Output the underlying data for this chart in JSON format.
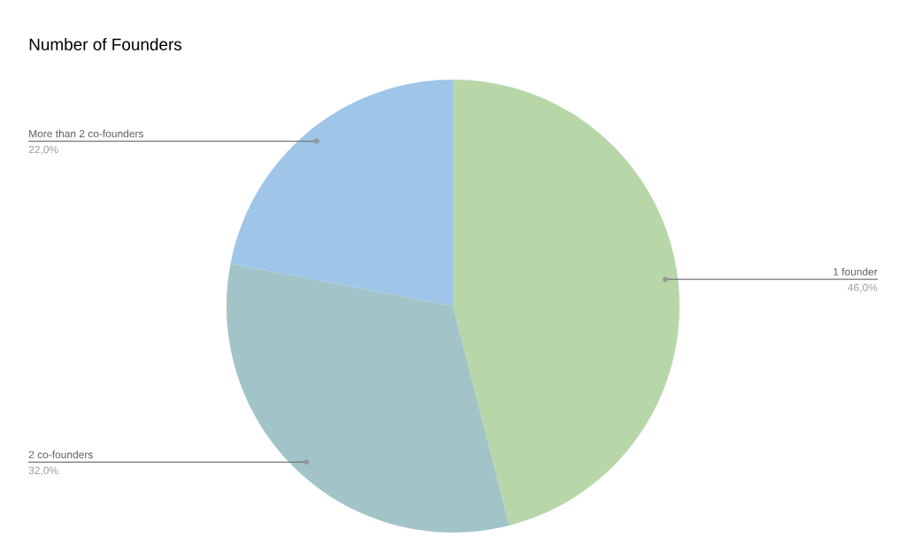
{
  "chart_data": {
    "type": "pie",
    "title": "Number of Founders",
    "categories": [
      "1 founder",
      "2 co-founders",
      "More than 2 co-founders"
    ],
    "values": [
      46,
      32,
      22
    ],
    "colors": [
      "#b7d7a8",
      "#a2c4c9",
      "#9fc5e8"
    ],
    "value_labels": [
      "46,0%",
      "32,0%",
      "22,0%"
    ]
  }
}
